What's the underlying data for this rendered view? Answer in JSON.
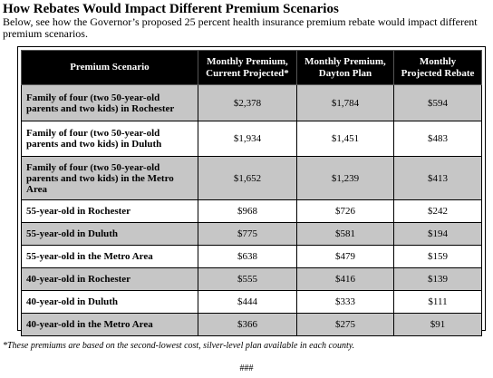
{
  "title": "How Rebates Would Impact Different Premium Scenarios",
  "intro": "Below, see how the Governor’s proposed 25 percent health insurance premium rebate would impact different premium scenarios.",
  "table": {
    "headers": [
      "Premium Scenario",
      "Monthly Premium, Current Projected*",
      "Monthly Premium, Dayton Plan",
      "Monthly Projected Rebate"
    ],
    "rows": [
      [
        "Family of four (two 50-year-old parents and two kids) in Rochester",
        "$2,378",
        "$1,784",
        "$594"
      ],
      [
        "Family of four (two 50-year-old parents and two kids) in Duluth",
        "$1,934",
        "$1,451",
        "$483"
      ],
      [
        "Family of four (two 50-year-old parents and two kids) in the Metro Area",
        "$1,652",
        "$1,239",
        "$413"
      ],
      [
        "55-year-old in Rochester",
        "$968",
        "$726",
        "$242"
      ],
      [
        "55-year-old in Duluth",
        "$775",
        "$581",
        "$194"
      ],
      [
        "55-year-old in the Metro Area",
        "$638",
        "$479",
        "$159"
      ],
      [
        "40-year-old in Rochester",
        "$555",
        "$416",
        "$139"
      ],
      [
        "40-year-old in Duluth",
        "$444",
        "$333",
        "$111"
      ],
      [
        "40-year-old in the Metro Area",
        "$366",
        "$275",
        "$91"
      ]
    ]
  },
  "footnote": "*These premiums are based on the second-lowest cost, silver-level plan available in each county.",
  "end_mark": "###",
  "colors": {
    "header_bg": "#000000",
    "header_text": "#ffffff",
    "shaded_row": "#c6c6c6",
    "plain_row": "#ffffff"
  }
}
